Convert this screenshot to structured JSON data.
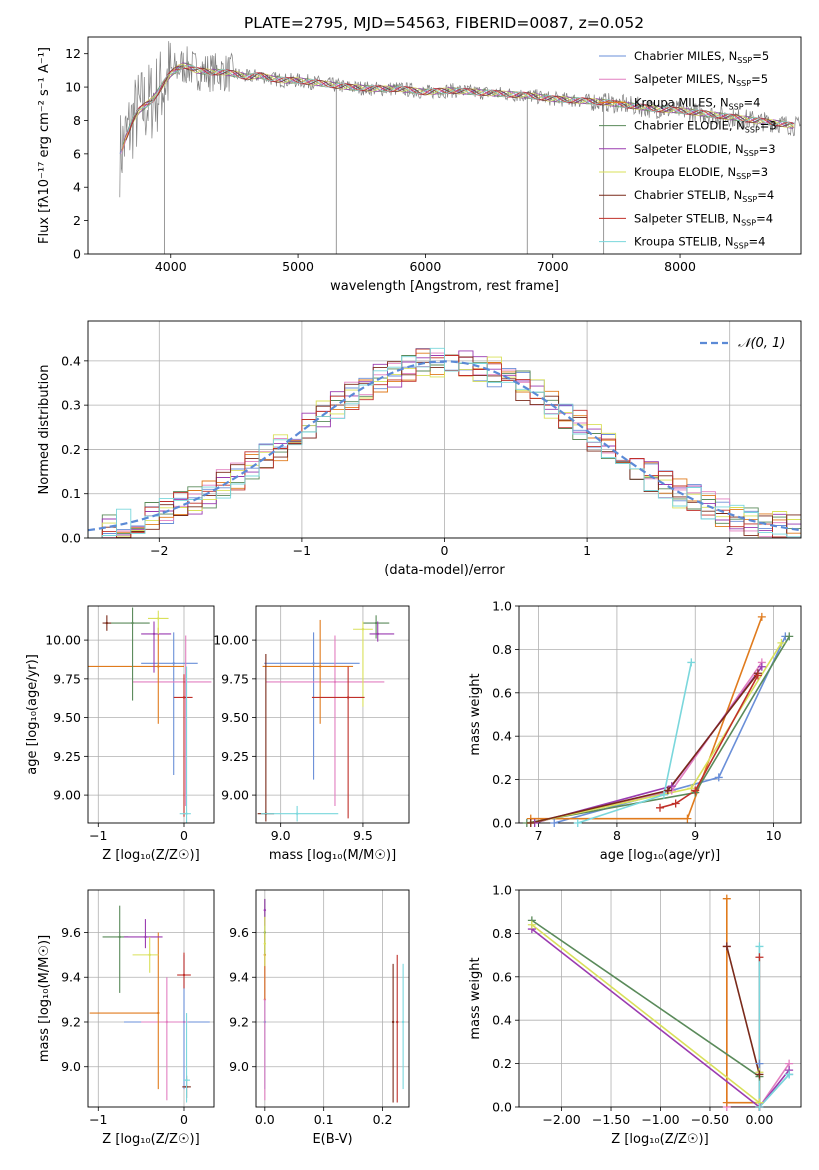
{
  "figure": {
    "title": "PLATE=2795, MJD=54563, FIBERID=0087, z=0.052"
  },
  "colors": {
    "series": [
      "#6a8fd8",
      "#e27fc0",
      "#e07b1d",
      "#5a8a5a",
      "#9a3bb0",
      "#d9e05a",
      "#7a2a1a",
      "#c0302a",
      "#7ad7dc"
    ],
    "observed": "#808080",
    "normal": "#5b8ad6",
    "grid": "#b0b0b0"
  },
  "chart_data": [
    {
      "id": "spectrum",
      "type": "line",
      "xlabel": "wavelength [Angstrom, rest frame]",
      "ylabel": "Flux [fλ10⁻¹⁷ erg cm⁻² s⁻¹ A⁻¹]",
      "xlim": [
        3350,
        8950
      ],
      "ylim": [
        0,
        13
      ],
      "xticks": [
        4000,
        5000,
        6000,
        7000,
        8000
      ],
      "yticks": [
        0,
        2,
        4,
        6,
        8,
        10,
        12
      ],
      "grid": false,
      "legend_position": "top-right",
      "legend": [
        "Chabrier MILES, N_SSP=5",
        "Salpeter MILES, N_SSP=5",
        "Kroupa MILES, N_SSP=4",
        "Chabrier ELODIE, N_SSP=3",
        "Salpeter ELODIE, N_SSP=3",
        "Kroupa ELODIE, N_SSP=3",
        "Chabrier STELIB, N_SSP=4",
        "Salpeter STELIB, N_SSP=4",
        "Kroupa STELIB, N_SSP=4"
      ],
      "continuum": {
        "x": [
          3600,
          3650,
          3700,
          3750,
          3800,
          3850,
          3900,
          3950,
          4000,
          4050,
          4100,
          4150,
          4200,
          4300,
          4400,
          4500,
          4600,
          4700,
          4800,
          4900,
          5000,
          5200,
          5400,
          5600,
          5800,
          6000,
          6200,
          6400,
          6600,
          6800,
          7000,
          7200,
          7400,
          7600,
          7800,
          8000,
          8200,
          8400,
          8600,
          8800,
          8950
        ],
        "y": [
          6.0,
          7.0,
          8.0,
          8.6,
          8.9,
          9.2,
          9.7,
          10.3,
          10.8,
          11.1,
          11.3,
          11.2,
          11.0,
          10.9,
          10.9,
          10.8,
          10.6,
          10.7,
          10.5,
          10.4,
          10.4,
          10.2,
          10.0,
          9.9,
          9.9,
          9.7,
          9.8,
          9.7,
          9.6,
          9.5,
          9.3,
          9.2,
          9.1,
          8.9,
          8.7,
          8.6,
          8.4,
          8.2,
          8.0,
          7.8,
          7.6
        ]
      }
    },
    {
      "id": "residuals",
      "type": "bar",
      "xlabel": "(data-model)/error",
      "ylabel": "Normed distribution",
      "xlim": [
        -2.5,
        2.5
      ],
      "ylim": [
        0,
        0.49
      ],
      "xticks": [
        -2,
        -1,
        0,
        1,
        2
      ],
      "yticks": [
        0.0,
        0.1,
        0.2,
        0.3,
        0.4
      ],
      "grid": true,
      "legend_position": "top-right",
      "legend": [
        "𝒩(0, 1)"
      ],
      "bin_width": 0.1,
      "normal": {
        "mean": 0,
        "sd": 1
      }
    },
    {
      "id": "age-vs-Z",
      "type": "scatter",
      "xlabel": "Z [log₁₀(Z/Z☉)]",
      "ylabel": "age  [log₁₀(age/yr)]",
      "xlim": [
        -1.12,
        0.35
      ],
      "ylim": [
        8.82,
        10.22
      ],
      "xticks": [
        -1,
        0
      ],
      "yticks": [
        9.0,
        9.25,
        9.5,
        9.75,
        10.0
      ],
      "grid": true,
      "points": [
        {
          "x": -0.12,
          "y": 9.85,
          "xerr": [
            0.38,
            0.28
          ],
          "yerr": [
            0.72,
            0.2
          ]
        },
        {
          "x": 0.02,
          "y": 9.73,
          "xerr": [
            0.62,
            0.3
          ],
          "yerr": [
            0.8,
            0.3
          ]
        },
        {
          "x": -0.3,
          "y": 9.83,
          "xerr": [
            0.82,
            0.3
          ],
          "yerr": [
            0.37,
            0.25
          ]
        },
        {
          "x": -0.6,
          "y": 10.11,
          "xerr": [
            0.3,
            0.2
          ],
          "yerr": [
            0.5,
            0.1
          ]
        },
        {
          "x": -0.35,
          "y": 10.04,
          "xerr": [
            0.15,
            0.2
          ],
          "yerr": [
            0.25,
            0.08
          ]
        },
        {
          "x": -0.3,
          "y": 10.14,
          "xerr": [
            0.12,
            0.12
          ],
          "yerr": [
            0.1,
            0.05
          ]
        },
        {
          "x": -0.9,
          "y": 10.11,
          "xerr": [
            0.05,
            0.05
          ],
          "yerr": [
            0.05,
            0.05
          ]
        },
        {
          "x": 0.0,
          "y": 9.63,
          "xerr": [
            0.12,
            0.1
          ],
          "yerr": [
            0.77,
            0.15
          ]
        },
        {
          "x": 0.03,
          "y": 8.88,
          "xerr": [
            0.08,
            0.05
          ],
          "yerr": [
            0.1,
            0.95
          ]
        }
      ]
    },
    {
      "id": "age-vs-mass",
      "type": "scatter",
      "xlabel": "mass [log₁₀(M/M☉)]",
      "ylabel": "",
      "xlim": [
        8.85,
        9.78
      ],
      "ylim": [
        8.82,
        10.22
      ],
      "xticks": [
        9.0,
        9.5
      ],
      "yticks": [
        9.0,
        9.25,
        9.5,
        9.75,
        10.0
      ],
      "grid": true,
      "points": [
        {
          "x": 9.2,
          "y": 9.85,
          "xerr": [
            0.3,
            0.28
          ],
          "yerr": [
            0.75,
            0.2
          ]
        },
        {
          "x": 9.33,
          "y": 9.73,
          "xerr": [
            0.42,
            0.3
          ],
          "yerr": [
            0.8,
            0.3
          ]
        },
        {
          "x": 9.24,
          "y": 9.83,
          "xerr": [
            0.35,
            0.2
          ],
          "yerr": [
            0.37,
            0.3
          ]
        },
        {
          "x": 9.58,
          "y": 10.11,
          "xerr": [
            0.08,
            0.08
          ],
          "yerr": [
            0.1,
            0.05
          ]
        },
        {
          "x": 9.59,
          "y": 10.04,
          "xerr": [
            0.05,
            0.1
          ],
          "yerr": [
            0.05,
            0.08
          ]
        },
        {
          "x": 9.5,
          "y": 10.07,
          "xerr": [
            0.06,
            0.06
          ],
          "yerr": [
            0.5,
            0.05
          ]
        },
        {
          "x": 8.91,
          "y": 8.88,
          "xerr": [
            0.05,
            0.05
          ],
          "yerr": [
            0.05,
            1.03
          ]
        },
        {
          "x": 9.41,
          "y": 9.63,
          "xerr": [
            0.22,
            0.1
          ],
          "yerr": [
            0.78,
            0.2
          ]
        },
        {
          "x": 9.1,
          "y": 8.88,
          "xerr": [
            0.22,
            0.25
          ],
          "yerr": [
            0.05,
            0.05
          ]
        }
      ]
    },
    {
      "id": "massweight-vs-age",
      "type": "line",
      "xlabel": "age  [log₁₀(age/yr)]",
      "ylabel": "mass weight",
      "xlim": [
        6.75,
        10.35
      ],
      "ylim": [
        0,
        1.0
      ],
      "xticks": [
        7,
        8,
        9,
        10
      ],
      "yticks": [
        0.0,
        0.2,
        0.4,
        0.6,
        0.8,
        1.0
      ],
      "grid": true,
      "series": [
        {
          "x": [
            7.2,
            9.3,
            10.15
          ],
          "y": [
            0.0,
            0.21,
            0.86
          ]
        },
        {
          "x": [
            6.9,
            8.7,
            9.85
          ],
          "y": [
            0.0,
            0.15,
            0.74
          ]
        },
        {
          "x": [
            6.9,
            8.9,
            9.85
          ],
          "y": [
            0.02,
            0.02,
            0.95
          ]
        },
        {
          "x": [
            6.85,
            9.0,
            10.2
          ],
          "y": [
            0.0,
            0.14,
            0.86
          ]
        },
        {
          "x": [
            6.95,
            8.7,
            9.85
          ],
          "y": [
            0.0,
            0.17,
            0.72
          ]
        },
        {
          "x": [
            6.9,
            8.95,
            10.1
          ],
          "y": [
            0.0,
            0.16,
            0.83
          ]
        },
        {
          "x": [
            6.9,
            8.65,
            9.8
          ],
          "y": [
            0.0,
            0.15,
            0.69
          ]
        },
        {
          "x": [
            8.55,
            8.75,
            9.0,
            9.8
          ],
          "y": [
            0.07,
            0.09,
            0.15,
            0.68
          ]
        },
        {
          "x": [
            7.5,
            8.6,
            8.95
          ],
          "y": [
            0.0,
            0.13,
            0.74
          ]
        }
      ]
    },
    {
      "id": "mass-vs-Z",
      "type": "scatter",
      "xlabel": "Z [log₁₀(Z/Z☉)]",
      "ylabel": "mass [log₁₀(M/M☉)]",
      "xlim": [
        -1.12,
        0.35
      ],
      "ylim": [
        8.82,
        9.79
      ],
      "xticks": [
        -1,
        0
      ],
      "yticks": [
        9.0,
        9.2,
        9.4,
        9.6
      ],
      "grid": true,
      "points": [
        {
          "x": 0.0,
          "y": 9.2,
          "xerr": [
            0.7,
            0.3
          ],
          "yerr": [
            0.3,
            0.3
          ]
        },
        {
          "x": -0.2,
          "y": 9.2,
          "xerr": [
            0.3,
            0.25
          ],
          "yerr": [
            0.35,
            0.2
          ]
        },
        {
          "x": -0.3,
          "y": 9.24,
          "xerr": [
            0.8,
            0.0
          ],
          "yerr": [
            0.34,
            0.36
          ]
        },
        {
          "x": -0.75,
          "y": 9.58,
          "xerr": [
            0.2,
            0.1
          ],
          "yerr": [
            0.25,
            0.14
          ]
        },
        {
          "x": -0.45,
          "y": 9.58,
          "xerr": [
            0.25,
            0.2
          ],
          "yerr": [
            0.05,
            0.08
          ]
        },
        {
          "x": -0.4,
          "y": 9.5,
          "xerr": [
            0.2,
            0.1
          ],
          "yerr": [
            0.08,
            0.08
          ]
        },
        {
          "x": 0.03,
          "y": 8.91,
          "xerr": [
            0.05,
            0.05
          ],
          "yerr": [
            0.05,
            0.05
          ]
        },
        {
          "x": 0.0,
          "y": 9.41,
          "xerr": [
            0.08,
            0.08
          ],
          "yerr": [
            0.06,
            0.1
          ]
        },
        {
          "x": 0.03,
          "y": 8.94,
          "xerr": [
            0.04,
            0.04
          ],
          "yerr": [
            0.1,
            0.3
          ]
        }
      ]
    },
    {
      "id": "mass-vs-EBV",
      "type": "scatter",
      "xlabel": "E(B-V)",
      "ylabel": "",
      "xlim": [
        -0.015,
        0.245
      ],
      "ylim": [
        8.82,
        9.79
      ],
      "xticks": [
        0.0,
        0.1,
        0.2
      ],
      "yticks": [
        9.0,
        9.2,
        9.4,
        9.6
      ],
      "grid": true,
      "points": [
        {
          "x": 0.0,
          "y": 9.2,
          "xerr": [
            0.0,
            0.0
          ],
          "yerr": [
            0.3,
            0.3
          ]
        },
        {
          "x": 0.0,
          "y": 9.3,
          "xerr": [
            0.0,
            0.0
          ],
          "yerr": [
            0.45,
            0.3
          ]
        },
        {
          "x": 0.0,
          "y": 9.5,
          "xerr": [
            0.0,
            0.0
          ],
          "yerr": [
            0.2,
            0.1
          ]
        },
        {
          "x": 0.0,
          "y": 9.6,
          "xerr": [
            0.0,
            0.0
          ],
          "yerr": [
            0.1,
            0.15
          ]
        },
        {
          "x": 0.0,
          "y": 9.7,
          "xerr": [
            0.0,
            0.0
          ],
          "yerr": [
            0.07,
            0.05
          ]
        },
        {
          "x": 0.0,
          "y": 9.55,
          "xerr": [
            0.0,
            0.0
          ],
          "yerr": [
            0.1,
            0.12
          ]
        },
        {
          "x": 0.218,
          "y": 9.2,
          "xerr": [
            0.0,
            0.0
          ],
          "yerr": [
            0.36,
            0.26
          ]
        },
        {
          "x": 0.225,
          "y": 9.2,
          "xerr": [
            0.0,
            0.0
          ],
          "yerr": [
            0.36,
            0.3
          ]
        },
        {
          "x": 0.235,
          "y": 9.2,
          "xerr": [
            0.0,
            0.0
          ],
          "yerr": [
            0.3,
            0.26
          ]
        }
      ]
    },
    {
      "id": "massweight-vs-Z",
      "type": "line",
      "xlabel": "Z [log₁₀(Z/Z☉)]",
      "ylabel": "mass weight",
      "xlim": [
        -2.43,
        0.42
      ],
      "ylim": [
        0,
        1.0
      ],
      "xticks": [
        -2.0,
        -1.5,
        -1.0,
        -0.5,
        0.0
      ],
      "yticks": [
        0.0,
        0.2,
        0.4,
        0.6,
        0.8,
        1.0
      ],
      "grid": true,
      "series": [
        {
          "x": [
            0.0,
            0.0,
            0.3
          ],
          "y": [
            0.2,
            0.0,
            0.15
          ]
        },
        {
          "x": [
            -0.33,
            -0.33,
            0.0,
            0.3
          ],
          "y": [
            0.74,
            0.0,
            0.0,
            0.2
          ]
        },
        {
          "x": [
            -0.33,
            -0.33,
            0.0
          ],
          "y": [
            0.96,
            0.02,
            0.02
          ]
        },
        {
          "x": [
            -2.3,
            0.0,
            0.0
          ],
          "y": [
            0.86,
            0.14,
            0.0
          ]
        },
        {
          "x": [
            -2.3,
            0.0,
            0.3
          ],
          "y": [
            0.82,
            0.0,
            0.17
          ]
        },
        {
          "x": [
            -2.3,
            0.0,
            0.0
          ],
          "y": [
            0.84,
            0.02,
            0.16
          ]
        },
        {
          "x": [
            -0.33,
            0.0
          ],
          "y": [
            0.74,
            0.15
          ]
        },
        {
          "x": [
            0.0,
            0.0
          ],
          "y": [
            0.69,
            0.0
          ]
        },
        {
          "x": [
            0.0,
            0.0,
            0.3
          ],
          "y": [
            0.74,
            0.0,
            0.15
          ]
        }
      ]
    }
  ]
}
